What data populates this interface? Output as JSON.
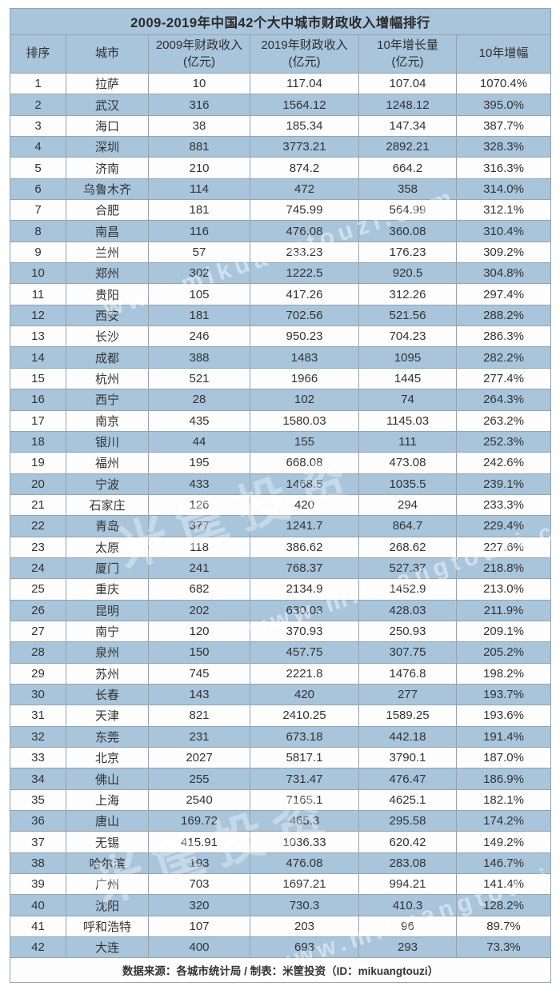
{
  "title": "2009-2019年中国42个大中城市财政收入增幅排行",
  "footer": "数据来源：各城市统计局 / 制表：米筐投资（ID：mikuangtouzi）",
  "watermark": {
    "url_text": "www.mikuangtouzi.com",
    "brand_text": "米筐投资"
  },
  "colors": {
    "row_blue": "#a8c5dc",
    "row_white": "#fdfdfd",
    "border": "#96a3ae",
    "text": "#333333"
  },
  "chart_data": {
    "type": "table",
    "title": "2009-2019年中国42个大中城市财政收入增幅排行",
    "columns": [
      {
        "line1": "排序",
        "line2": ""
      },
      {
        "line1": "城市",
        "line2": ""
      },
      {
        "line1": "2009年财政收入",
        "line2": "(亿元)"
      },
      {
        "line1": "2019年财政收入",
        "line2": "(亿元)"
      },
      {
        "line1": "10年增长量",
        "line2": "(亿元)"
      },
      {
        "line1": "10年增幅",
        "line2": ""
      }
    ],
    "rows": [
      [
        "1",
        "拉萨",
        "10",
        "117.04",
        "107.04",
        "1070.4%"
      ],
      [
        "2",
        "武汉",
        "316",
        "1564.12",
        "1248.12",
        "395.0%"
      ],
      [
        "3",
        "海口",
        "38",
        "185.34",
        "147.34",
        "387.7%"
      ],
      [
        "4",
        "深圳",
        "881",
        "3773.21",
        "2892.21",
        "328.3%"
      ],
      [
        "5",
        "济南",
        "210",
        "874.2",
        "664.2",
        "316.3%"
      ],
      [
        "6",
        "乌鲁木齐",
        "114",
        "472",
        "358",
        "314.0%"
      ],
      [
        "7",
        "合肥",
        "181",
        "745.99",
        "564.99",
        "312.1%"
      ],
      [
        "8",
        "南昌",
        "116",
        "476.08",
        "360.08",
        "310.4%"
      ],
      [
        "9",
        "兰州",
        "57",
        "233.23",
        "176.23",
        "309.2%"
      ],
      [
        "10",
        "郑州",
        "302",
        "1222.5",
        "920.5",
        "304.8%"
      ],
      [
        "11",
        "贵阳",
        "105",
        "417.26",
        "312.26",
        "297.4%"
      ],
      [
        "12",
        "西安",
        "181",
        "702.56",
        "521.56",
        "288.2%"
      ],
      [
        "13",
        "长沙",
        "246",
        "950.23",
        "704.23",
        "286.3%"
      ],
      [
        "14",
        "成都",
        "388",
        "1483",
        "1095",
        "282.2%"
      ],
      [
        "15",
        "杭州",
        "521",
        "1966",
        "1445",
        "277.4%"
      ],
      [
        "16",
        "西宁",
        "28",
        "102",
        "74",
        "264.3%"
      ],
      [
        "17",
        "南京",
        "435",
        "1580.03",
        "1145.03",
        "263.2%"
      ],
      [
        "18",
        "银川",
        "44",
        "155",
        "111",
        "252.3%"
      ],
      [
        "19",
        "福州",
        "195",
        "668.08",
        "473.08",
        "242.6%"
      ],
      [
        "20",
        "宁波",
        "433",
        "1468.5",
        "1035.5",
        "239.1%"
      ],
      [
        "21",
        "石家庄",
        "126",
        "420",
        "294",
        "233.3%"
      ],
      [
        "22",
        "青岛",
        "377",
        "1241.7",
        "864.7",
        "229.4%"
      ],
      [
        "23",
        "太原",
        "118",
        "386.62",
        "268.62",
        "227.6%"
      ],
      [
        "24",
        "厦门",
        "241",
        "768.37",
        "527.37",
        "218.8%"
      ],
      [
        "25",
        "重庆",
        "682",
        "2134.9",
        "1452.9",
        "213.0%"
      ],
      [
        "26",
        "昆明",
        "202",
        "630.03",
        "428.03",
        "211.9%"
      ],
      [
        "27",
        "南宁",
        "120",
        "370.93",
        "250.93",
        "209.1%"
      ],
      [
        "28",
        "泉州",
        "150",
        "457.75",
        "307.75",
        "205.2%"
      ],
      [
        "29",
        "苏州",
        "745",
        "2221.8",
        "1476.8",
        "198.2%"
      ],
      [
        "30",
        "长春",
        "143",
        "420",
        "277",
        "193.7%"
      ],
      [
        "31",
        "天津",
        "821",
        "2410.25",
        "1589.25",
        "193.6%"
      ],
      [
        "32",
        "东莞",
        "231",
        "673.18",
        "442.18",
        "191.4%"
      ],
      [
        "33",
        "北京",
        "2027",
        "5817.1",
        "3790.1",
        "187.0%"
      ],
      [
        "34",
        "佛山",
        "255",
        "731.47",
        "476.47",
        "186.9%"
      ],
      [
        "35",
        "上海",
        "2540",
        "7165.1",
        "4625.1",
        "182.1%"
      ],
      [
        "36",
        "唐山",
        "169.72",
        "465.3",
        "295.58",
        "174.2%"
      ],
      [
        "37",
        "无锡",
        "415.91",
        "1036.33",
        "620.42",
        "149.2%"
      ],
      [
        "38",
        "哈尔滨",
        "193",
        "476.08",
        "283.08",
        "146.7%"
      ],
      [
        "39",
        "广州",
        "703",
        "1697.21",
        "994.21",
        "141.4%"
      ],
      [
        "40",
        "沈阳",
        "320",
        "730.3",
        "410.3",
        "128.2%"
      ],
      [
        "41",
        "呼和浩特",
        "107",
        "203",
        "96",
        "89.7%"
      ],
      [
        "42",
        "大连",
        "400",
        "693",
        "293",
        "73.3%"
      ]
    ]
  }
}
